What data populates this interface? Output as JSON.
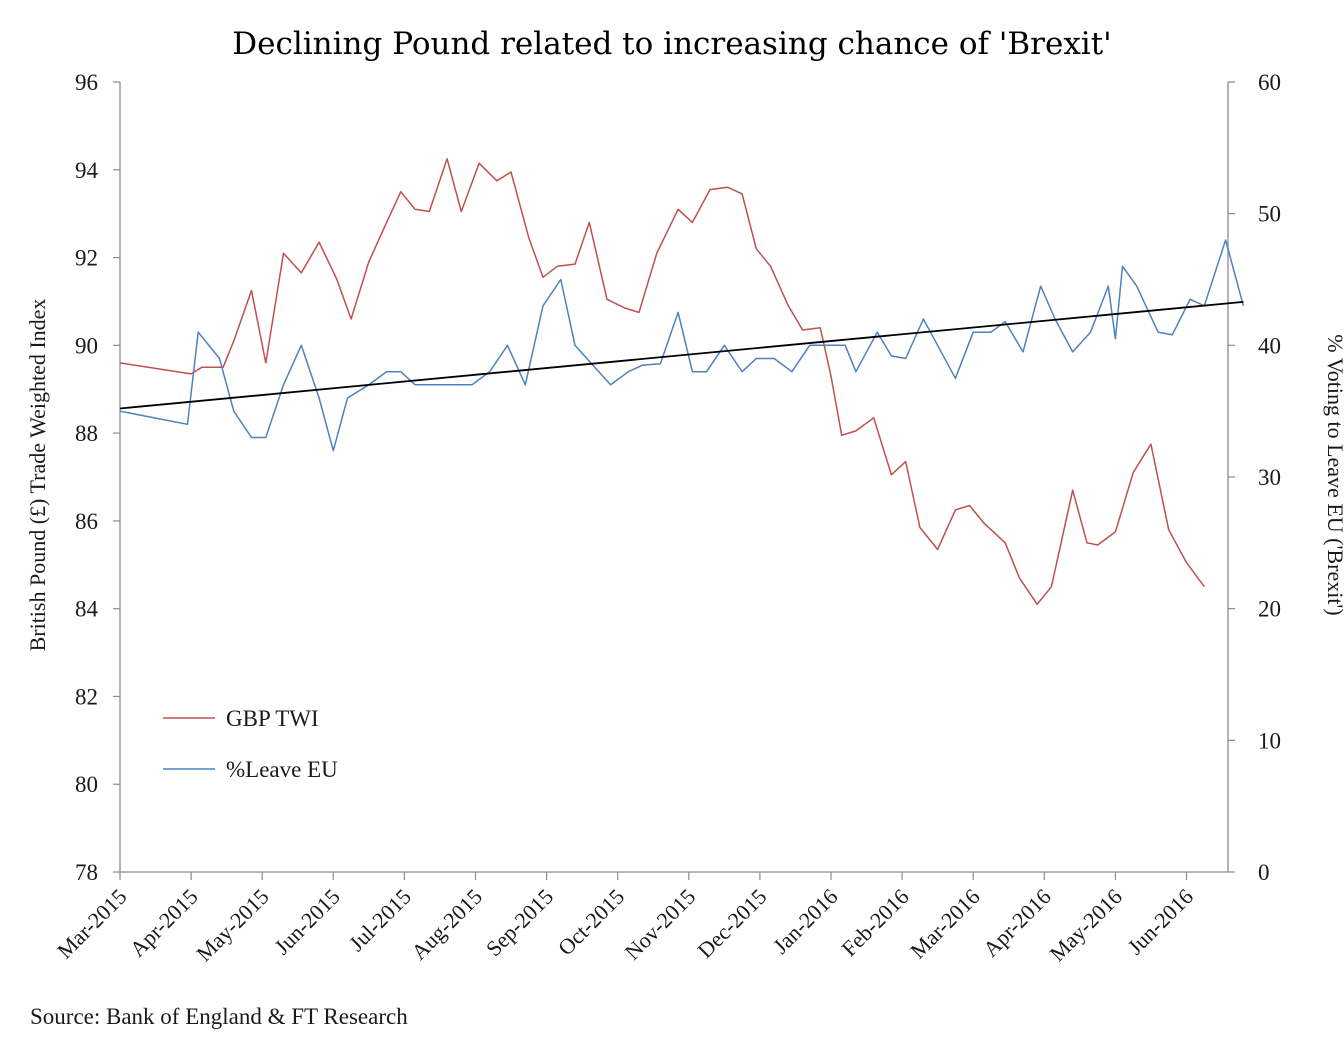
{
  "chart_data": {
    "type": "line",
    "title": "Declining Pound related to increasing chance of 'Brexit'",
    "source": "Source: Bank of England  & FT Research",
    "x_labels": [
      "Mar-2015",
      "Apr-2015",
      "May-2015",
      "Jun-2015",
      "Jul-2015",
      "Aug-2015",
      "Sep-2015",
      "Oct-2015",
      "Nov-2015",
      "Dec-2015",
      "Jan-2016",
      "Feb-2016",
      "Mar-2016",
      "Apr-2016",
      "May-2016",
      "Jun-2016"
    ],
    "y_left": {
      "label": "British  Pound (£) Trade Weighted  Index",
      "min": 78,
      "max": 96,
      "ticks": [
        78,
        80,
        82,
        84,
        86,
        88,
        90,
        92,
        94,
        96
      ]
    },
    "y_right": {
      "label": "% Voting to Leave EU  ('Brexit')",
      "min": 0,
      "max": 60,
      "ticks": [
        0,
        10,
        20,
        30,
        40,
        50,
        60
      ]
    },
    "legend": [
      "GBP TWI",
      "%Leave EU"
    ],
    "legend_position": "lower-left",
    "colors": {
      "gbp": "#c0504d",
      "leave": "#4f81bd",
      "trend": "#000000",
      "axis": "#8c8c8c"
    },
    "series": [
      {
        "name": "GBP TWI",
        "axis": "left",
        "points": [
          [
            0,
            89.6
          ],
          [
            1.0,
            89.35
          ],
          [
            1.15,
            89.5
          ],
          [
            1.45,
            89.5
          ],
          [
            1.6,
            90.1
          ],
          [
            1.85,
            91.25
          ],
          [
            2.05,
            89.6
          ],
          [
            2.3,
            92.1
          ],
          [
            2.55,
            91.65
          ],
          [
            2.8,
            92.35
          ],
          [
            3.05,
            91.5
          ],
          [
            3.25,
            90.6
          ],
          [
            3.5,
            91.9
          ],
          [
            3.75,
            92.8
          ],
          [
            3.95,
            93.5
          ],
          [
            4.15,
            93.1
          ],
          [
            4.35,
            93.05
          ],
          [
            4.6,
            94.25
          ],
          [
            4.8,
            93.05
          ],
          [
            5.05,
            94.15
          ],
          [
            5.3,
            93.75
          ],
          [
            5.5,
            93.95
          ],
          [
            5.75,
            92.45
          ],
          [
            5.95,
            91.55
          ],
          [
            6.15,
            91.8
          ],
          [
            6.4,
            91.85
          ],
          [
            6.6,
            92.8
          ],
          [
            6.85,
            91.05
          ],
          [
            7.1,
            90.85
          ],
          [
            7.3,
            90.75
          ],
          [
            7.55,
            92.1
          ],
          [
            7.85,
            93.1
          ],
          [
            8.05,
            92.8
          ],
          [
            8.3,
            93.55
          ],
          [
            8.55,
            93.6
          ],
          [
            8.75,
            93.45
          ],
          [
            8.95,
            92.2
          ],
          [
            9.15,
            91.8
          ],
          [
            9.4,
            90.9
          ],
          [
            9.6,
            90.35
          ],
          [
            9.85,
            90.4
          ],
          [
            10.0,
            89.3
          ],
          [
            10.15,
            87.95
          ],
          [
            10.35,
            88.05
          ],
          [
            10.6,
            88.35
          ],
          [
            10.85,
            87.05
          ],
          [
            11.05,
            87.35
          ],
          [
            11.25,
            85.85
          ],
          [
            11.5,
            85.35
          ],
          [
            11.75,
            86.25
          ],
          [
            11.95,
            86.35
          ],
          [
            12.15,
            85.95
          ],
          [
            12.45,
            85.5
          ],
          [
            12.65,
            84.7
          ],
          [
            12.9,
            84.1
          ],
          [
            13.1,
            84.5
          ],
          [
            13.4,
            86.7
          ],
          [
            13.6,
            85.5
          ],
          [
            13.75,
            85.45
          ],
          [
            14.0,
            85.75
          ],
          [
            14.25,
            87.1
          ],
          [
            14.5,
            87.75
          ],
          [
            14.75,
            85.8
          ],
          [
            15.0,
            85.05
          ],
          [
            15.25,
            84.5
          ]
        ]
      },
      {
        "name": "%Leave EU",
        "axis": "right",
        "points": [
          [
            0,
            35
          ],
          [
            0.95,
            34
          ],
          [
            1.1,
            41
          ],
          [
            1.4,
            39
          ],
          [
            1.6,
            35
          ],
          [
            1.85,
            33
          ],
          [
            2.05,
            33
          ],
          [
            2.3,
            37
          ],
          [
            2.55,
            40
          ],
          [
            2.8,
            36
          ],
          [
            3.0,
            32
          ],
          [
            3.2,
            36
          ],
          [
            3.5,
            37
          ],
          [
            3.75,
            38
          ],
          [
            3.95,
            38
          ],
          [
            4.15,
            37
          ],
          [
            4.4,
            37
          ],
          [
            4.7,
            37
          ],
          [
            4.95,
            37
          ],
          [
            5.2,
            38
          ],
          [
            5.45,
            40
          ],
          [
            5.7,
            37
          ],
          [
            5.95,
            43
          ],
          [
            6.2,
            45
          ],
          [
            6.4,
            40
          ],
          [
            6.65,
            38.5
          ],
          [
            6.9,
            37
          ],
          [
            7.15,
            38
          ],
          [
            7.35,
            38.5
          ],
          [
            7.6,
            38.6
          ],
          [
            7.85,
            42.5
          ],
          [
            8.05,
            38
          ],
          [
            8.25,
            38
          ],
          [
            8.5,
            40
          ],
          [
            8.75,
            38
          ],
          [
            8.95,
            39
          ],
          [
            9.2,
            39
          ],
          [
            9.45,
            38
          ],
          [
            9.7,
            40
          ],
          [
            9.95,
            40
          ],
          [
            10.2,
            40
          ],
          [
            10.35,
            38
          ],
          [
            10.65,
            41
          ],
          [
            10.85,
            39.2
          ],
          [
            11.05,
            39
          ],
          [
            11.3,
            42
          ],
          [
            11.5,
            40
          ],
          [
            11.75,
            37.5
          ],
          [
            12.0,
            41
          ],
          [
            12.25,
            41
          ],
          [
            12.45,
            41.8
          ],
          [
            12.7,
            39.5
          ],
          [
            12.95,
            44.5
          ],
          [
            13.15,
            42
          ],
          [
            13.4,
            39.5
          ],
          [
            13.65,
            41
          ],
          [
            13.9,
            44.5
          ],
          [
            14.0,
            40.5
          ],
          [
            14.1,
            46
          ],
          [
            14.3,
            44.5
          ],
          [
            14.6,
            41
          ],
          [
            14.8,
            40.8
          ],
          [
            15.05,
            43.5
          ],
          [
            15.25,
            43
          ],
          [
            15.55,
            48
          ],
          [
            15.8,
            43
          ]
        ]
      },
      {
        "name": "",
        "axis": "right",
        "kind": "trendline",
        "points": [
          [
            0,
            35.2
          ],
          [
            15.8,
            43.3
          ]
        ]
      }
    ]
  }
}
